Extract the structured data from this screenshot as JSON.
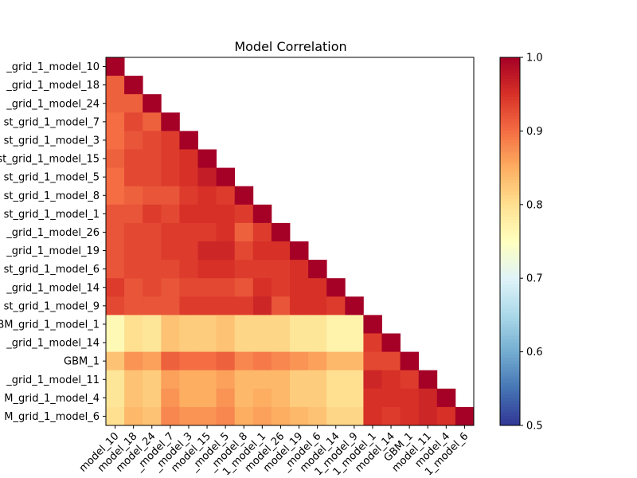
{
  "chart_data": {
    "type": "heatmap",
    "title": "Model Correlation",
    "xlabel": "",
    "ylabel": "",
    "y_labels": [
      "_grid_1_model_10",
      "_grid_1_model_18",
      "_grid_1_model_24",
      "st_grid_1_model_7",
      "st_grid_1_model_3",
      "st_grid_1_model_15",
      "st_grid_1_model_5",
      "st_grid_1_model_8",
      "st_grid_1_model_1",
      "_grid_1_model_26",
      "_grid_1_model_19",
      "st_grid_1_model_6",
      "_grid_1_model_14",
      "st_grid_1_model_9",
      "BM_grid_1_model_1",
      "_grid_1_model_14",
      "GBM_1",
      "_grid_1_model_11",
      "M_grid_1_model_4",
      "M_grid_1_model_6"
    ],
    "x_labels": [
      "model_10",
      "model_18",
      "model_24",
      "_model_7",
      "_model_3",
      "model_15",
      "_model_5",
      "_model_8",
      "1_model_1",
      "model_26",
      "model_19",
      "_model_6",
      "model_14",
      "1_model_9",
      "1_model_1",
      "model_14",
      "GBM_1",
      "model_11",
      "model_4",
      "1_model_6"
    ],
    "matrix": [
      [
        1.0
      ],
      [
        0.91,
        1.0
      ],
      [
        0.91,
        0.91,
        1.0
      ],
      [
        0.9,
        0.93,
        0.91,
        1.0
      ],
      [
        0.9,
        0.92,
        0.93,
        0.94,
        1.0
      ],
      [
        0.91,
        0.93,
        0.93,
        0.94,
        0.95,
        1.0
      ],
      [
        0.9,
        0.93,
        0.93,
        0.94,
        0.95,
        0.97,
        1.0
      ],
      [
        0.9,
        0.91,
        0.92,
        0.92,
        0.94,
        0.95,
        0.94,
        1.0
      ],
      [
        0.92,
        0.92,
        0.94,
        0.93,
        0.95,
        0.95,
        0.95,
        0.94,
        1.0
      ],
      [
        0.92,
        0.93,
        0.93,
        0.94,
        0.94,
        0.94,
        0.95,
        0.91,
        0.94,
        1.0
      ],
      [
        0.92,
        0.93,
        0.93,
        0.94,
        0.94,
        0.96,
        0.96,
        0.93,
        0.95,
        0.95,
        1.0
      ],
      [
        0.92,
        0.93,
        0.93,
        0.93,
        0.94,
        0.95,
        0.95,
        0.94,
        0.94,
        0.94,
        0.95,
        1.0
      ],
      [
        0.94,
        0.92,
        0.93,
        0.92,
        0.93,
        0.93,
        0.93,
        0.92,
        0.95,
        0.94,
        0.95,
        0.95,
        1.0
      ],
      [
        0.93,
        0.92,
        0.92,
        0.92,
        0.94,
        0.94,
        0.94,
        0.94,
        0.96,
        0.92,
        0.95,
        0.95,
        0.94,
        1.0
      ],
      [
        0.76,
        0.8,
        0.79,
        0.83,
        0.82,
        0.82,
        0.83,
        0.81,
        0.81,
        0.81,
        0.79,
        0.79,
        0.77,
        0.77,
        1.0
      ],
      [
        0.76,
        0.8,
        0.79,
        0.83,
        0.82,
        0.82,
        0.83,
        0.81,
        0.81,
        0.81,
        0.79,
        0.79,
        0.77,
        0.77,
        0.94,
        1.0
      ],
      [
        0.83,
        0.87,
        0.86,
        0.91,
        0.9,
        0.9,
        0.91,
        0.88,
        0.89,
        0.88,
        0.87,
        0.86,
        0.84,
        0.84,
        0.93,
        0.93,
        1.0
      ],
      [
        0.79,
        0.83,
        0.82,
        0.86,
        0.85,
        0.85,
        0.86,
        0.84,
        0.84,
        0.84,
        0.82,
        0.82,
        0.8,
        0.8,
        0.96,
        0.95,
        0.94,
        1.0
      ],
      [
        0.79,
        0.83,
        0.82,
        0.87,
        0.85,
        0.85,
        0.87,
        0.84,
        0.85,
        0.84,
        0.82,
        0.82,
        0.8,
        0.8,
        0.95,
        0.95,
        0.95,
        0.96,
        1.0
      ],
      [
        0.8,
        0.84,
        0.83,
        0.88,
        0.87,
        0.87,
        0.88,
        0.85,
        0.86,
        0.85,
        0.84,
        0.83,
        0.81,
        0.81,
        0.95,
        0.94,
        0.95,
        0.96,
        0.95,
        1.0
      ]
    ],
    "color_scale": "RdYlBu_r",
    "vmin": 0.5,
    "vmax": 1.0,
    "colorbar_ticks": [
      "0.5",
      "0.6",
      "0.7",
      "0.8",
      "0.9",
      "1.0"
    ]
  }
}
